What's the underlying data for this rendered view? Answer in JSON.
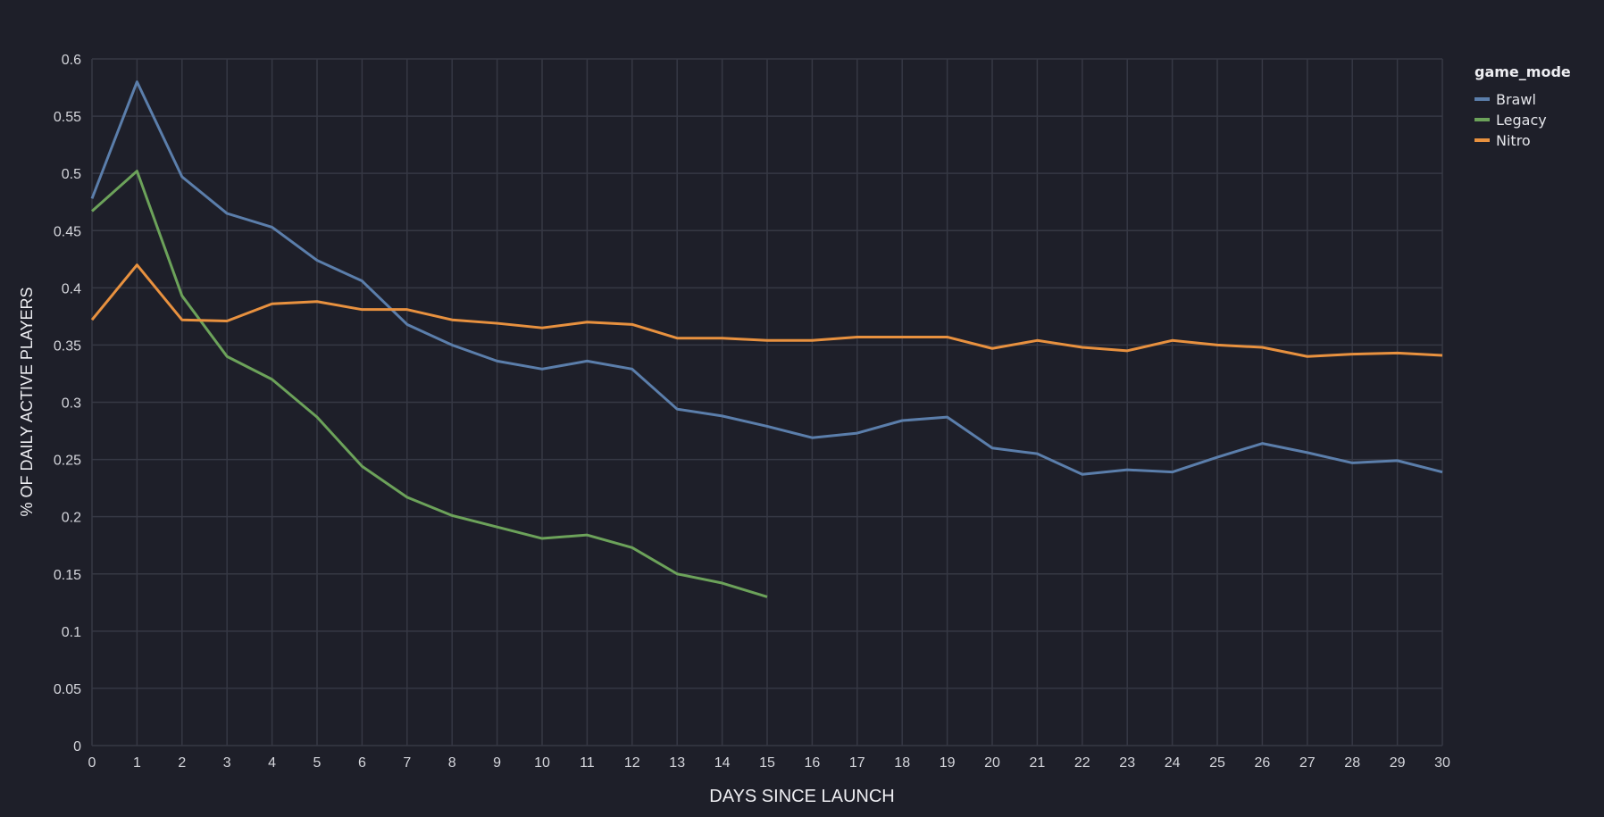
{
  "chart_data": {
    "type": "line",
    "title": "",
    "xlabel": "DAYS SINCE LAUNCH",
    "ylabel": "% OF DAILY ACTIVE PLAYERS",
    "xlim": [
      0,
      30
    ],
    "ylim": [
      0,
      0.6
    ],
    "x_ticks": [
      0,
      1,
      2,
      3,
      4,
      5,
      6,
      7,
      8,
      9,
      10,
      11,
      12,
      13,
      14,
      15,
      16,
      17,
      18,
      19,
      20,
      21,
      22,
      23,
      24,
      25,
      26,
      27,
      28,
      29,
      30
    ],
    "y_ticks": [
      "0",
      "0.05",
      "0.1",
      "0.15",
      "0.2",
      "0.25",
      "0.3",
      "0.35",
      "0.4",
      "0.45",
      "0.5",
      "0.55",
      "0.6"
    ],
    "grid": true,
    "legend": {
      "title": "game_mode",
      "placement": "right"
    },
    "series": [
      {
        "name": "Brawl",
        "color": "#5b7eab",
        "x": [
          0,
          1,
          2,
          3,
          4,
          5,
          6,
          7,
          8,
          9,
          10,
          11,
          12,
          13,
          14,
          15,
          16,
          17,
          18,
          19,
          20,
          21,
          22,
          23,
          24,
          25,
          26,
          27,
          28,
          29,
          30
        ],
        "values": [
          0.478,
          0.58,
          0.497,
          0.465,
          0.453,
          0.424,
          0.406,
          0.368,
          0.35,
          0.336,
          0.329,
          0.336,
          0.329,
          0.294,
          0.288,
          0.279,
          0.269,
          0.273,
          0.284,
          0.287,
          0.26,
          0.255,
          0.237,
          0.241,
          0.239,
          0.252,
          0.264,
          0.256,
          0.247,
          0.249,
          0.239
        ]
      },
      {
        "name": "Legacy",
        "color": "#6ca25a",
        "x": [
          0,
          1,
          2,
          3,
          4,
          5,
          6,
          7,
          8,
          9,
          10,
          11,
          12,
          13,
          14,
          15
        ],
        "values": [
          0.467,
          0.502,
          0.393,
          0.34,
          0.32,
          0.287,
          0.244,
          0.217,
          0.201,
          0.191,
          0.181,
          0.184,
          0.173,
          0.15,
          0.142,
          0.13
        ]
      },
      {
        "name": "Nitro",
        "color": "#e8913f",
        "x": [
          0,
          1,
          2,
          3,
          4,
          5,
          6,
          7,
          8,
          9,
          10,
          11,
          12,
          13,
          14,
          15,
          16,
          17,
          18,
          19,
          20,
          21,
          22,
          23,
          24,
          25,
          26,
          27,
          28,
          29,
          30
        ],
        "values": [
          0.372,
          0.42,
          0.372,
          0.371,
          0.386,
          0.388,
          0.381,
          0.381,
          0.372,
          0.369,
          0.365,
          0.37,
          0.368,
          0.356,
          0.356,
          0.354,
          0.354,
          0.357,
          0.357,
          0.357,
          0.347,
          0.354,
          0.348,
          0.345,
          0.354,
          0.35,
          0.348,
          0.34,
          0.342,
          0.343,
          0.341
        ]
      }
    ]
  }
}
